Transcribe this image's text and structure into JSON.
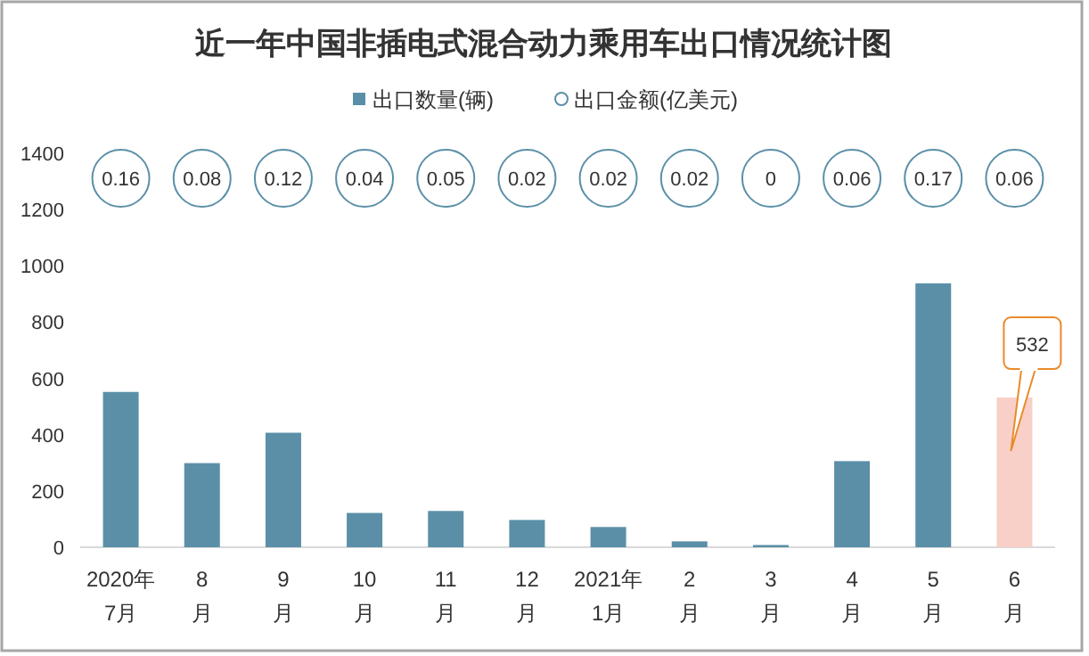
{
  "chart_data": [
    {
      "type": "bar",
      "title": "近一年中国非插电式混合动力乘用车出口情况统计图",
      "categories": [
        "2020年\n7月",
        "8\n月",
        "9\n月",
        "10\n月",
        "11\n月",
        "12\n月",
        "2021年\n1月",
        "2\n月",
        "3\n月",
        "4\n月",
        "5\n月",
        "6\n月"
      ],
      "series": [
        {
          "name": "出口数量(辆)",
          "color": "#5b8fa8",
          "colors": [
            "#5b8fa8",
            "#5b8fa8",
            "#5b8fa8",
            "#5b8fa8",
            "#5b8fa8",
            "#5b8fa8",
            "#5b8fa8",
            "#5b8fa8",
            "#5b8fa8",
            "#5b8fa8",
            "#5b8fa8",
            "#f8d0c8"
          ],
          "values": [
            552,
            299,
            407,
            122,
            129,
            97,
            72,
            21,
            8,
            306,
            938,
            532
          ]
        }
      ],
      "annotations": [
        {
          "text": "532",
          "x": "6\n月",
          "y": 532
        }
      ],
      "ylim": [
        0,
        1400
      ],
      "yticks": [
        0,
        200,
        400,
        600,
        800,
        1000,
        1200,
        1400
      ],
      "grid": false,
      "legend": "top"
    },
    {
      "type": "other",
      "series": [
        {
          "name": "出口金额(亿美元)",
          "color": "#5b8fa8",
          "values": [
            0.16,
            0.08,
            0.12,
            0.04,
            0.05,
            0.02,
            0.02,
            0.02,
            0,
            0.06,
            0.17,
            0.06
          ]
        }
      ],
      "data_labels": true,
      "legend": "top"
    }
  ]
}
